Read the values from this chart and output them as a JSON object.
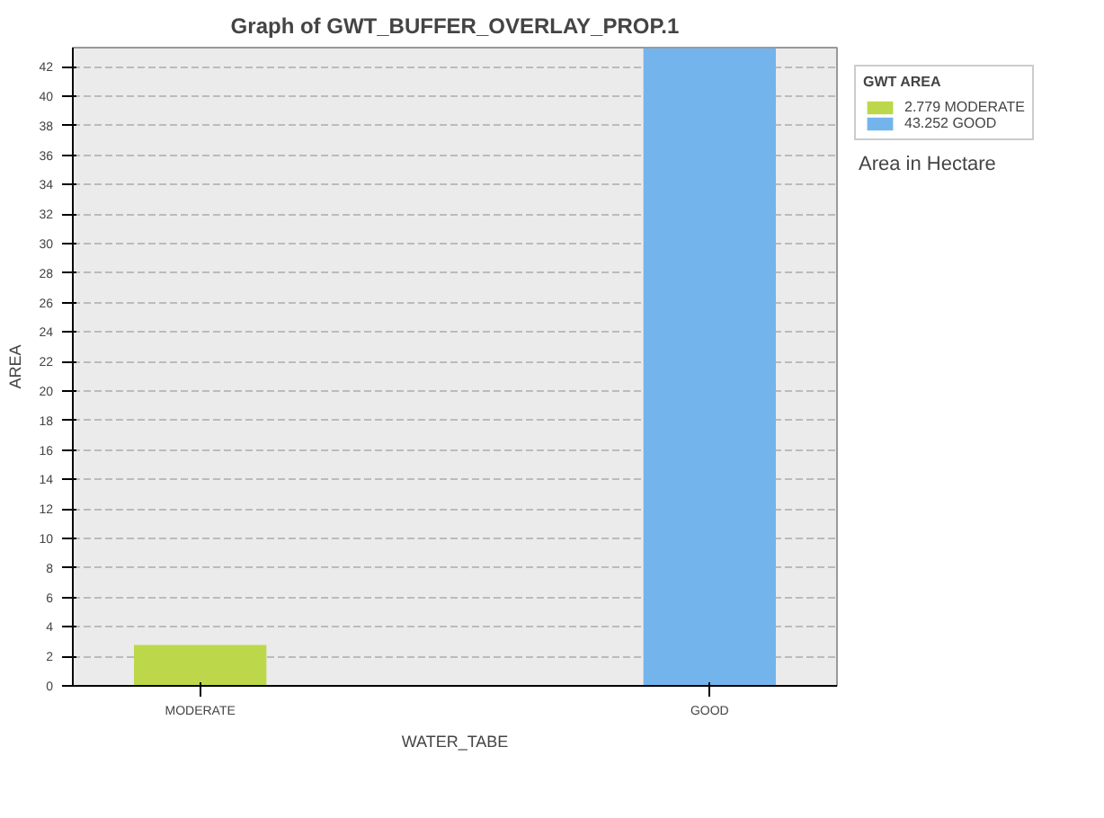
{
  "chart_data": {
    "type": "bar",
    "title": "Graph of GWT_BUFFER_OVERLAY_PROP.1",
    "categories": [
      "MODERATE",
      "GOOD"
    ],
    "series": [
      {
        "name": "2.779 MODERATE",
        "color": "#bcd84a",
        "values": [
          2.779,
          null
        ]
      },
      {
        "name": "43.252 GOOD",
        "color": "#74b4ec",
        "values": [
          null,
          43.252
        ]
      }
    ],
    "xlabel": "WATER_TABE",
    "ylabel": "AREA",
    "legend_title": "GWT AREA",
    "annotations": [
      "Area in Hectare"
    ],
    "ylim": [
      0,
      43.3
    ],
    "yticks": [
      0,
      2,
      4,
      6,
      8,
      10,
      12,
      14,
      16,
      18,
      20,
      22,
      24,
      26,
      28,
      30,
      32,
      34,
      36,
      38,
      40,
      42
    ],
    "grid": "y",
    "legend": "top right"
  }
}
